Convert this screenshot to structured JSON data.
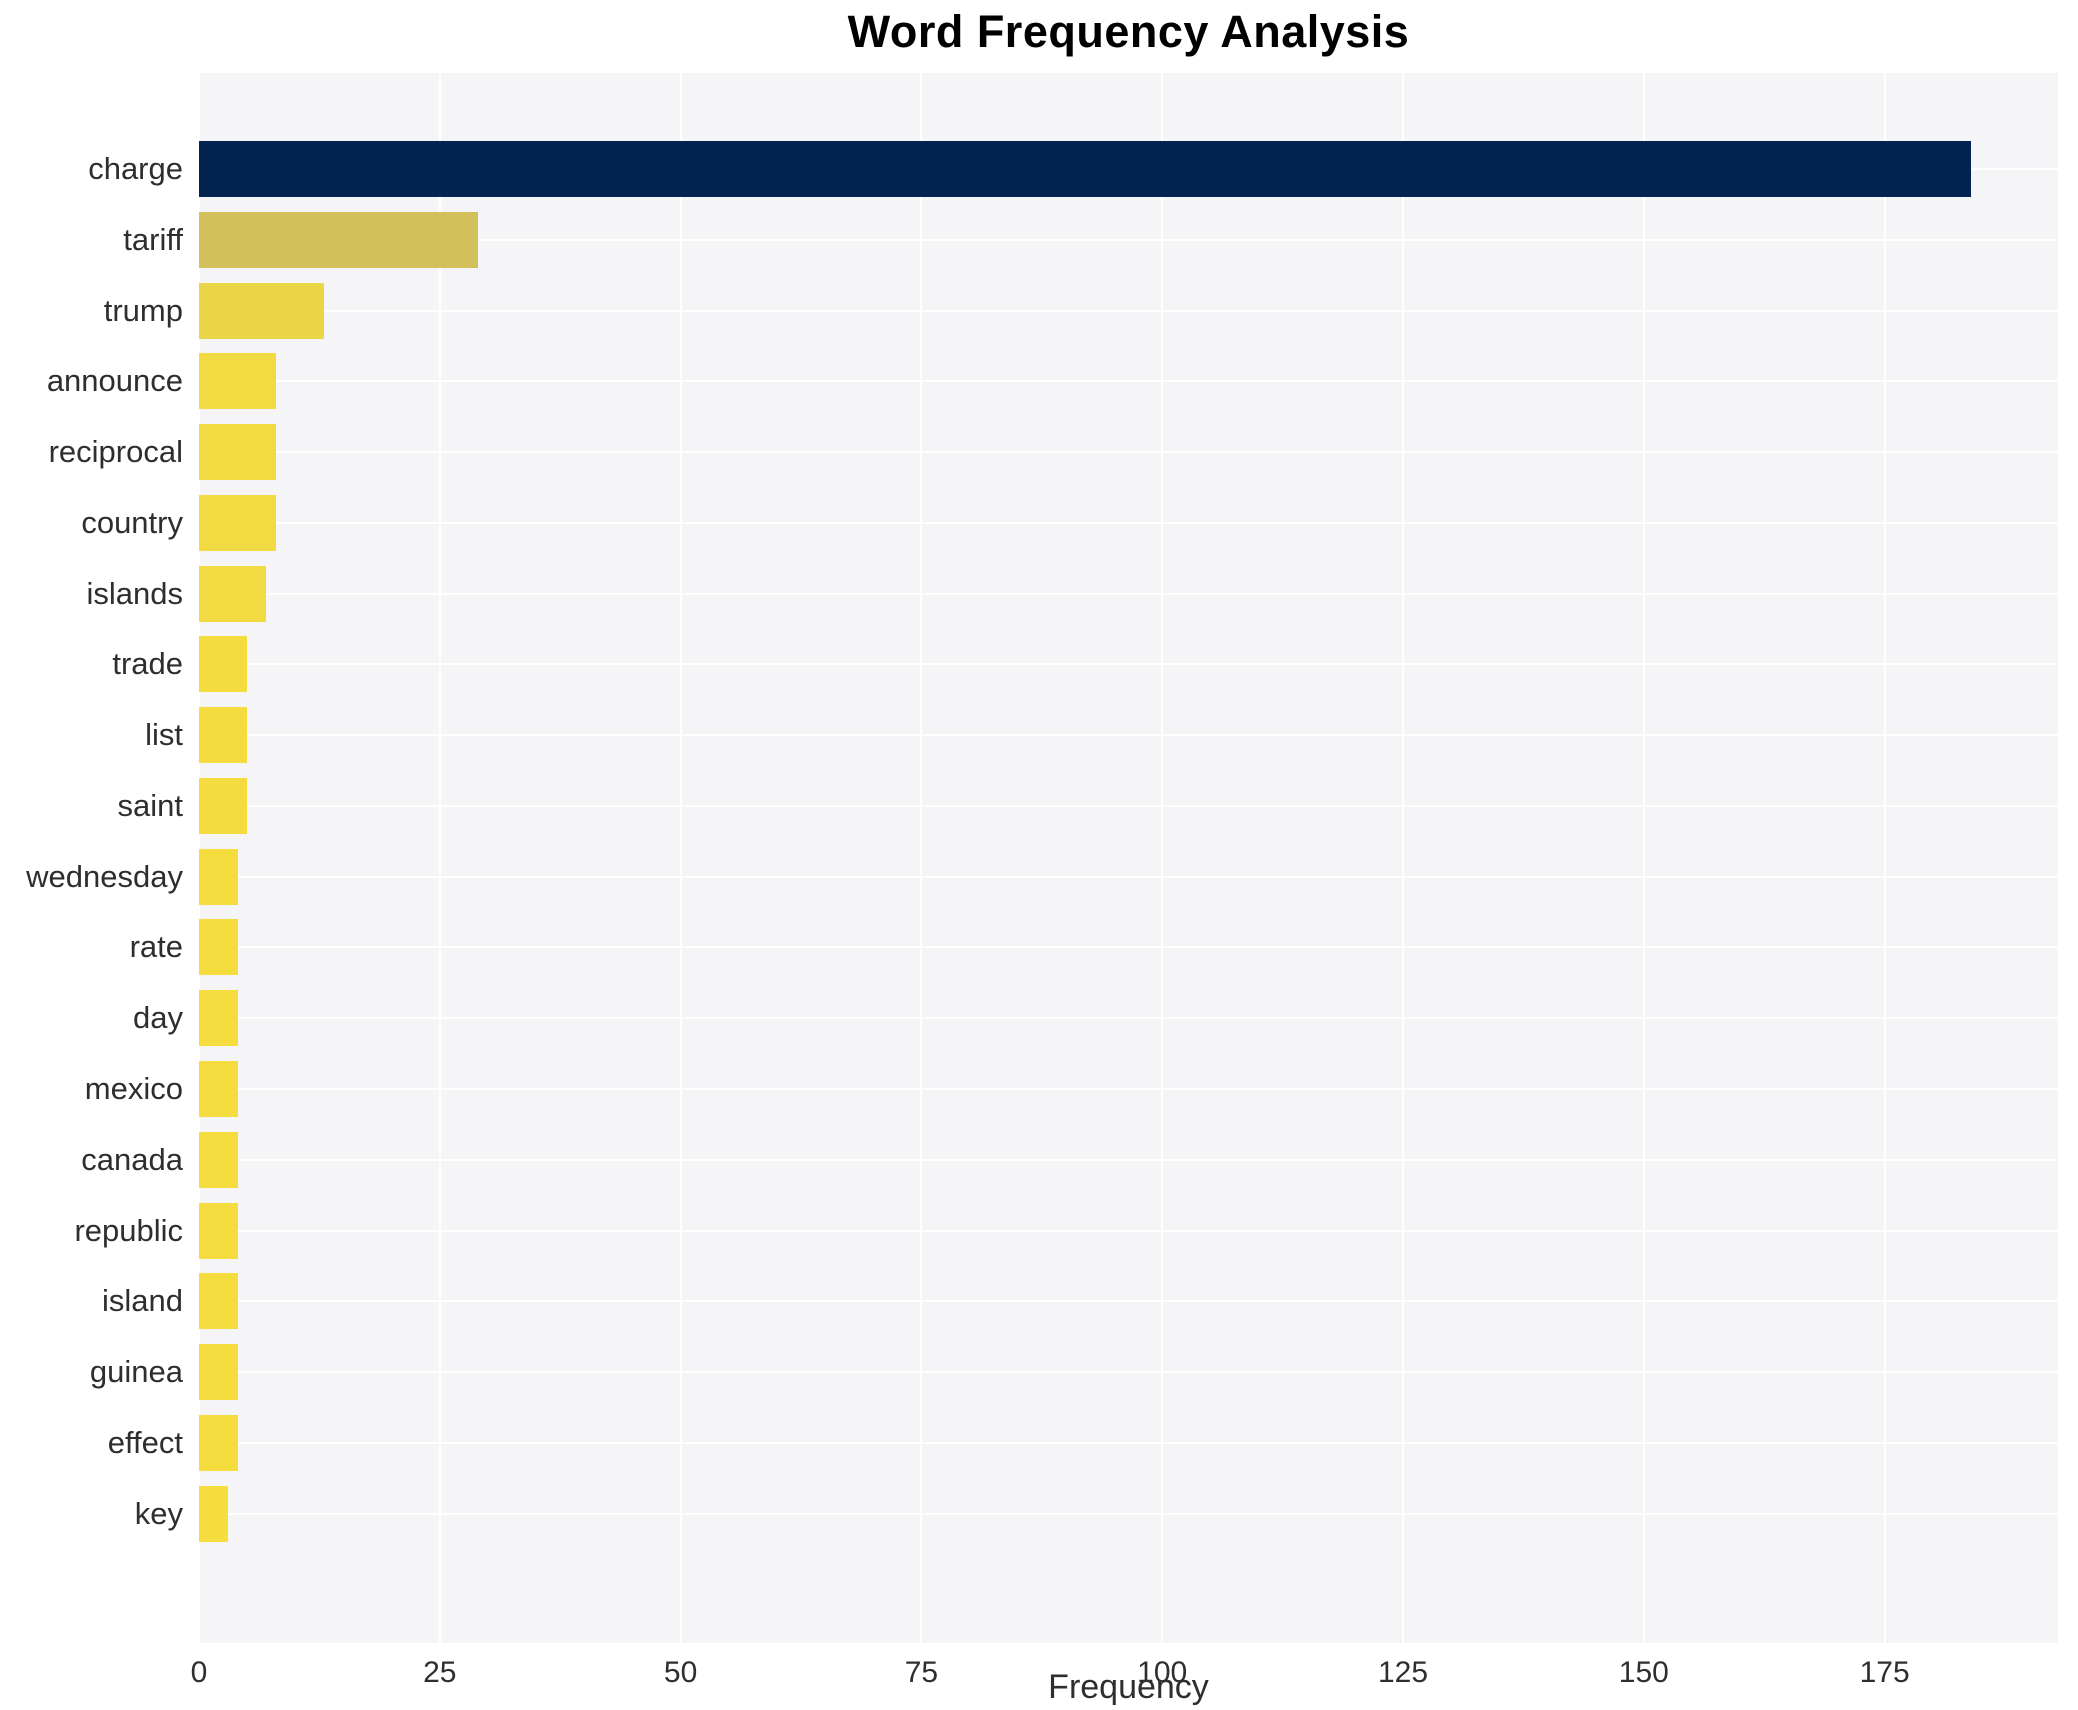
{
  "title": "Word Frequency Analysis",
  "chart_data": {
    "type": "bar",
    "orientation": "horizontal",
    "title": "Word Frequency Analysis",
    "xlabel": "Frequency",
    "ylabel": "",
    "categories": [
      "charge",
      "tariff",
      "trump",
      "announce",
      "reciprocal",
      "country",
      "islands",
      "trade",
      "list",
      "saint",
      "wednesday",
      "rate",
      "day",
      "mexico",
      "canada",
      "republic",
      "island",
      "guinea",
      "effect",
      "key"
    ],
    "values": [
      184,
      29,
      13,
      8,
      8,
      8,
      7,
      5,
      5,
      5,
      4,
      4,
      4,
      4,
      4,
      4,
      4,
      4,
      4,
      3
    ],
    "bar_colors": [
      "#032350",
      "#d2c05a",
      "#ebd647",
      "#f1da42",
      "#f1da42",
      "#f1da42",
      "#f2da42",
      "#f4dc40",
      "#f4dc40",
      "#f4dc40",
      "#f5dd3f",
      "#f5dd3f",
      "#f5dd3f",
      "#f5dd3f",
      "#f5dd3f",
      "#f5dd3f",
      "#f5dd3f",
      "#f5dd3f",
      "#f5dd3f",
      "#f7de3e"
    ],
    "x_ticks": [
      0,
      25,
      50,
      75,
      100,
      125,
      150,
      175
    ],
    "xlim": [
      0,
      193
    ],
    "grid": true,
    "legend": false,
    "plot_bg_color": "#f5f5f7",
    "grid_color": "#ffffff",
    "title_color": "#000000",
    "tick_label_color": "#2e2e2e"
  }
}
